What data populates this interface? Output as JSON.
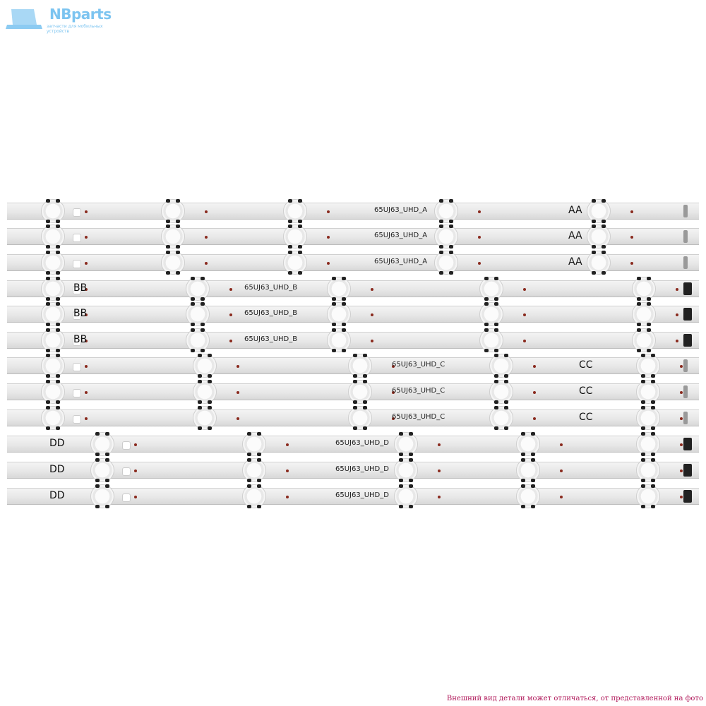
{
  "logo": {
    "brand": "NBparts",
    "tagline": "запчасти для мобильных устройств",
    "color": "#7cc4f0"
  },
  "strips": [
    {
      "group": "A",
      "model": "65UJ63_UHD_A",
      "code": "AA"
    },
    {
      "group": "A",
      "model": "65UJ63_UHD_A",
      "code": "AA"
    },
    {
      "group": "A",
      "model": "65UJ63_UHD_A",
      "code": "AA"
    },
    {
      "group": "B",
      "model": "65UJ63_UHD_B",
      "code": "BB"
    },
    {
      "group": "B",
      "model": "65UJ63_UHD_B",
      "code": "BB"
    },
    {
      "group": "B",
      "model": "65UJ63_UHD_B",
      "code": "BB"
    },
    {
      "group": "C",
      "model": "65UJ63_UHD_C",
      "code": "CC"
    },
    {
      "group": "C",
      "model": "65UJ63_UHD_C",
      "code": "CC"
    },
    {
      "group": "C",
      "model": "65UJ63_UHD_C",
      "code": "CC"
    },
    {
      "group": "D",
      "model": "65UJ63_UHD_D",
      "code": "DD"
    },
    {
      "group": "D",
      "model": "65UJ63_UHD_D",
      "code": "DD"
    },
    {
      "group": "D",
      "model": "65UJ63_UHD_D",
      "code": "DD"
    }
  ],
  "disclaimer": "Внешний вид детали может отличаться, от представленной на фото",
  "disclaimer_color": "#b0185a"
}
